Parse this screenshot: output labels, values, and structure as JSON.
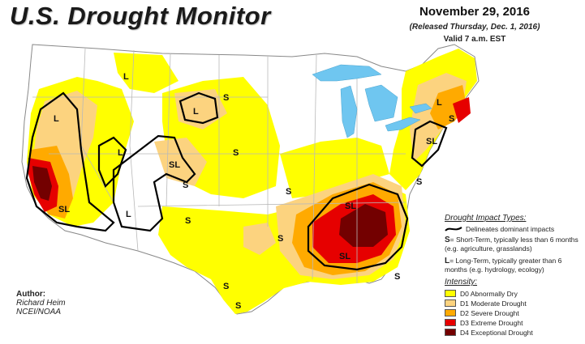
{
  "header": {
    "title": "U.S. Drought Monitor",
    "date": "November 29, 2016",
    "released": "(Released Thursday, Dec. 1, 2016)",
    "valid": "Valid 7 a.m. EST"
  },
  "author": {
    "heading": "Author:",
    "name": "Richard Heim",
    "org": "NCEI/NOAA"
  },
  "legend": {
    "impact_title": "Drought Impact Types:",
    "delineates": "Delineates dominant impacts",
    "s_key": "S",
    "s_text": "= Short-Term, typically less than 6 months (e.g. agriculture, grasslands)",
    "l_key": "L",
    "l_text": "= Long-Term, typically greater than 6 months (e.g. hydrology, ecology)",
    "intensity_title": "Intensity:",
    "categories": [
      {
        "label": "D0 Abnormally Dry",
        "color": "#ffff00"
      },
      {
        "label": "D1 Moderate Drought",
        "color": "#fcd37f"
      },
      {
        "label": "D2 Severe Drought",
        "color": "#ffaa00"
      },
      {
        "label": "D3 Extreme Drought",
        "color": "#e60000"
      },
      {
        "label": "D4 Exceptional Drought",
        "color": "#730000"
      }
    ]
  },
  "map_labels": {
    "l": "L",
    "s": "S",
    "sl": "SL"
  },
  "colors": {
    "lakes": "#6fc6f0",
    "land": "#ffffff",
    "borders": "#b9b9b9",
    "rivers": "#88bfe0"
  }
}
